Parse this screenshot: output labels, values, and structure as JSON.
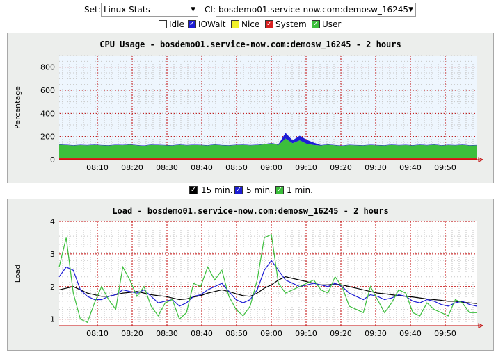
{
  "controls": {
    "set_label": "Set:",
    "set_value": "Linux Stats",
    "ci_label": "CI:",
    "ci_value": "bosdemo01.service-now.com:demosw_16245"
  },
  "cpu_toggles": [
    {
      "label": "Idle",
      "checked": false,
      "color": "#ffffff"
    },
    {
      "label": "IOWait",
      "checked": true,
      "color": "#1d1dd6"
    },
    {
      "label": "Nice",
      "checked": false,
      "color": "#f0f02a"
    },
    {
      "label": "System",
      "checked": true,
      "color": "#d82020"
    },
    {
      "label": "User",
      "checked": true,
      "color": "#3cbf3c"
    }
  ],
  "load_toggles": [
    {
      "label": "15 min.",
      "checked": true,
      "color": "#000000"
    },
    {
      "label": "5 min.",
      "checked": true,
      "color": "#1d1dd6"
    },
    {
      "label": "1 min.",
      "checked": true,
      "color": "#3cbf3c"
    }
  ],
  "chart_data": [
    {
      "type": "area",
      "title": "CPU Usage - bosdemo01.service-now.com:demosw_16245 - 2 hours",
      "ylabel": "Percentage",
      "xlabel": "",
      "ylim": [
        0,
        900
      ],
      "yticks": [
        "0",
        "200",
        "400",
        "600",
        "800"
      ],
      "xticks": [
        "08:10",
        "08:20",
        "08:30",
        "08:40",
        "08:50",
        "09:00",
        "09:10",
        "09:20",
        "09:30",
        "09:40",
        "09:50"
      ],
      "x_start": "07:59",
      "x_end": "09:59",
      "grid": true,
      "series": [
        {
          "name": "System",
          "color": "#d82020",
          "values": [
            12,
            12,
            12,
            12,
            12,
            12,
            12,
            12,
            12,
            12,
            12,
            12,
            12,
            12,
            12,
            12,
            12,
            12,
            12,
            12,
            12,
            12,
            12,
            12,
            12,
            12,
            12,
            12,
            12,
            12,
            12,
            12,
            12,
            12,
            12,
            12,
            12,
            12,
            12,
            12,
            12,
            12,
            12,
            12,
            12,
            12,
            12,
            12,
            12,
            12,
            12,
            12,
            12,
            12,
            12,
            12,
            12,
            12,
            12,
            12
          ]
        },
        {
          "name": "User",
          "color": "#3cbf3c",
          "values": [
            118,
            115,
            110,
            114,
            112,
            116,
            112,
            110,
            115,
            113,
            118,
            112,
            108,
            116,
            114,
            112,
            110,
            117,
            112,
            115,
            113,
            110,
            118,
            112,
            110,
            114,
            116,
            112,
            115,
            120,
            130,
            115,
            170,
            130,
            155,
            125,
            115,
            110,
            118,
            112,
            108,
            114,
            112,
            110,
            115,
            112,
            110,
            116,
            112,
            114,
            110,
            116,
            112,
            118,
            110,
            114,
            112,
            116,
            110,
            112
          ]
        },
        {
          "name": "IOWait",
          "color": "#1d1dd6",
          "values": [
            3,
            3,
            3,
            3,
            3,
            3,
            3,
            3,
            3,
            3,
            3,
            3,
            3,
            3,
            3,
            3,
            3,
            3,
            3,
            3,
            3,
            3,
            3,
            3,
            3,
            3,
            3,
            3,
            3,
            3,
            3,
            5,
            50,
            25,
            40,
            35,
            20,
            4,
            3,
            3,
            3,
            3,
            3,
            3,
            3,
            3,
            3,
            3,
            3,
            3,
            3,
            3,
            3,
            3,
            3,
            3,
            3,
            3,
            3,
            3
          ]
        }
      ]
    },
    {
      "type": "line",
      "title": "Load - bosdemo01.service-now.com:demosw_16245 - 2 hours",
      "ylabel": "Load",
      "xlabel": "",
      "ylim": [
        0.8,
        4.0
      ],
      "yticks": [
        "1",
        "2",
        "3",
        "4"
      ],
      "xticks": [
        "08:10",
        "08:20",
        "08:30",
        "08:40",
        "08:50",
        "09:00",
        "09:10",
        "09:20",
        "09:30",
        "09:40",
        "09:50"
      ],
      "x_start": "07:59",
      "x_end": "09:59",
      "grid": true,
      "series": [
        {
          "name": "15 min.",
          "color": "#000000",
          "values": [
            1.9,
            1.95,
            2.0,
            1.9,
            1.8,
            1.75,
            1.7,
            1.7,
            1.75,
            1.8,
            1.82,
            1.85,
            1.8,
            1.75,
            1.72,
            1.7,
            1.65,
            1.6,
            1.62,
            1.68,
            1.72,
            1.8,
            1.85,
            1.9,
            1.85,
            1.78,
            1.72,
            1.7,
            1.8,
            1.95,
            2.05,
            2.2,
            2.3,
            2.25,
            2.2,
            2.15,
            2.1,
            2.05,
            2.05,
            2.08,
            2.05,
            2.0,
            1.95,
            1.9,
            1.85,
            1.8,
            1.78,
            1.75,
            1.72,
            1.7,
            1.68,
            1.65,
            1.62,
            1.6,
            1.58,
            1.55,
            1.55,
            1.52,
            1.5,
            1.48
          ]
        },
        {
          "name": "5 min.",
          "color": "#1d1dd6",
          "values": [
            2.3,
            2.6,
            2.5,
            1.9,
            1.7,
            1.6,
            1.6,
            1.7,
            1.75,
            1.9,
            1.85,
            1.8,
            1.9,
            1.7,
            1.5,
            1.55,
            1.6,
            1.4,
            1.5,
            1.7,
            1.75,
            1.9,
            2.0,
            2.1,
            1.85,
            1.6,
            1.5,
            1.6,
            1.9,
            2.5,
            2.8,
            2.5,
            2.2,
            2.1,
            2.0,
            2.05,
            2.1,
            2.05,
            2.0,
            2.1,
            2.0,
            1.8,
            1.7,
            1.6,
            1.75,
            1.7,
            1.6,
            1.65,
            1.75,
            1.7,
            1.55,
            1.5,
            1.6,
            1.55,
            1.45,
            1.4,
            1.5,
            1.55,
            1.45,
            1.4
          ]
        },
        {
          "name": "1 min.",
          "color": "#3cbf3c",
          "values": [
            2.6,
            3.5,
            1.8,
            1.0,
            0.9,
            1.5,
            2.0,
            1.6,
            1.3,
            2.6,
            2.2,
            1.7,
            2.0,
            1.4,
            1.1,
            1.5,
            1.6,
            1.0,
            1.2,
            2.1,
            2.0,
            2.6,
            2.2,
            2.5,
            1.7,
            1.3,
            1.1,
            1.4,
            2.2,
            3.5,
            3.6,
            2.1,
            1.8,
            1.9,
            2.0,
            2.1,
            2.2,
            1.9,
            1.8,
            2.3,
            2.0,
            1.4,
            1.3,
            1.2,
            2.0,
            1.6,
            1.2,
            1.5,
            1.9,
            1.8,
            1.2,
            1.1,
            1.5,
            1.3,
            1.2,
            1.1,
            1.6,
            1.5,
            1.2,
            1.2
          ]
        }
      ]
    }
  ]
}
